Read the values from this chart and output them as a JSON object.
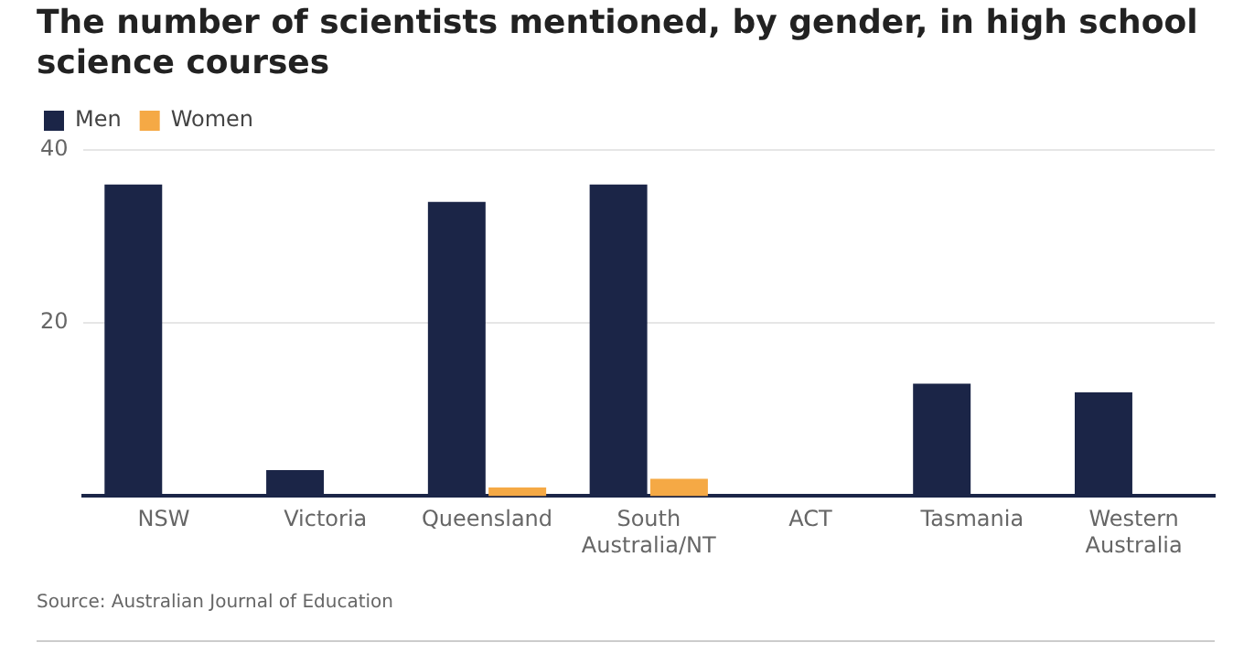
{
  "chart_data": {
    "type": "bar",
    "title": "The number of scientists mentioned, by gender, in high school science courses",
    "categories": [
      "NSW",
      "Victoria",
      "Queensland",
      "South Australia/NT",
      "ACT",
      "Tasmania",
      "Western Australia"
    ],
    "series": [
      {
        "name": "Men",
        "color": "#1b2547",
        "values": [
          36,
          3,
          34,
          36,
          0,
          13,
          12
        ]
      },
      {
        "name": "Women",
        "color": "#f5a945",
        "values": [
          0,
          0,
          1,
          2,
          0,
          0,
          0
        ]
      }
    ],
    "ylim": [
      0,
      40
    ],
    "yticks": [
      20,
      40
    ],
    "grid": "y",
    "legend": "top left",
    "annotations": [
      "Source: Australian Journal of Education"
    ]
  }
}
